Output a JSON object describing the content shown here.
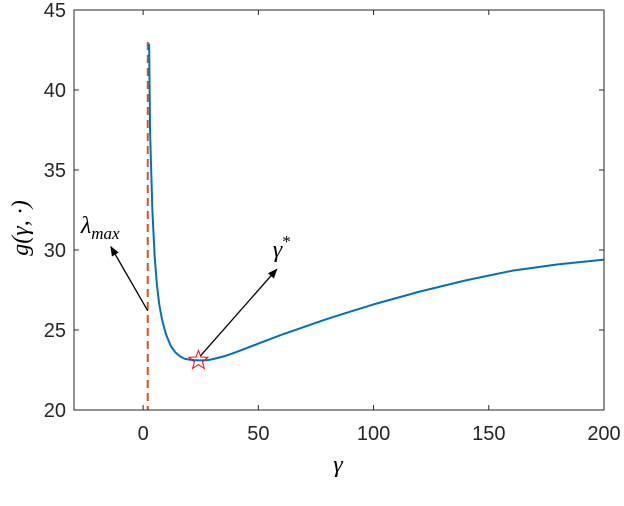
{
  "chart_data": {
    "type": "line",
    "title": "",
    "xlabel": "γ",
    "ylabel": "g(γ, ·)",
    "xlim": [
      -30,
      200
    ],
    "ylim": [
      20,
      45
    ],
    "xticks": [
      0,
      50,
      100,
      150,
      200
    ],
    "yticks": [
      20,
      25,
      30,
      35,
      40,
      45
    ],
    "grid": false,
    "series": [
      {
        "color": "#0072BD",
        "x": [
          2.6,
          3,
          4,
          5,
          6,
          7,
          8,
          9,
          10,
          12,
          14,
          16,
          18,
          20,
          22,
          24,
          26,
          28,
          30,
          35,
          40,
          50,
          60,
          70,
          80,
          90,
          100,
          120,
          140,
          160,
          180,
          200
        ],
        "y": [
          42.9,
          37.5,
          32.5,
          29.6,
          27.8,
          26.6,
          25.8,
          25.2,
          24.7,
          24.0,
          23.6,
          23.35,
          23.2,
          23.15,
          23.12,
          23.1,
          23.1,
          23.12,
          23.17,
          23.35,
          23.6,
          24.15,
          24.7,
          25.2,
          25.7,
          26.15,
          26.6,
          27.4,
          28.1,
          28.7,
          29.1,
          29.4
        ]
      }
    ],
    "vline": {
      "x": 2,
      "color": "#D95319",
      "style": "dashed"
    },
    "marker": {
      "x": 24,
      "y": 23.1,
      "shape": "star",
      "color": "#FF0000"
    },
    "annotations": [
      {
        "label": "λmax",
        "text": "λ",
        "sub": "max",
        "from": [
          2,
          26.2
        ],
        "to": [
          -14,
          30.2
        ]
      },
      {
        "label": "γ*",
        "text": "γ",
        "sup": "*",
        "from": [
          25,
          23.4
        ],
        "to": [
          58,
          28.8
        ]
      }
    ]
  }
}
